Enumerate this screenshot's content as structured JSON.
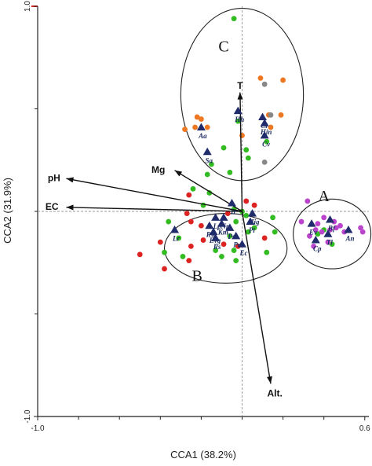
{
  "chart_data": {
    "type": "scatter",
    "title": "",
    "xlabel": "CCA1 (38.2%)",
    "ylabel": "CCA2 (31.9%)",
    "xlim": [
      -1.0,
      0.6
    ],
    "ylim": [
      -1.0,
      1.0
    ],
    "xticks": [
      {
        "value": -1.0,
        "label": "-1.0"
      },
      {
        "value": 0.6,
        "label": "0.6"
      }
    ],
    "yticks": [
      {
        "value": 1.0,
        "label": "1.0"
      },
      {
        "value": -1.0,
        "label": "-1.0"
      }
    ],
    "colors": {
      "group_a": "#bb44cc",
      "group_b_red": "#dd2222",
      "green": "#33bb22",
      "orange": "#ee7722",
      "gray": "#888888",
      "species": "#1f2b6b",
      "vector": "#111111"
    },
    "groups": [
      {
        "label": "A",
        "cx": 0.44,
        "cy": -0.11,
        "rx": 0.19,
        "ry": 0.17
      },
      {
        "label": "B",
        "cx": -0.08,
        "cy": -0.18,
        "rx": 0.3,
        "ry": 0.17
      },
      {
        "label": "C",
        "cx": 0.0,
        "cy": 0.57,
        "rx": 0.3,
        "ry": 0.42
      }
    ],
    "group_label_positions": [
      {
        "label": "A",
        "x": 0.4,
        "y": 0.05
      },
      {
        "label": "B",
        "x": -0.22,
        "y": -0.34
      },
      {
        "label": "C",
        "x": -0.09,
        "y": 0.78
      }
    ],
    "vectors": [
      {
        "label": "T",
        "x": -0.01,
        "y": 0.58,
        "label_x": -0.01,
        "label_y": 0.61
      },
      {
        "label": "Mg",
        "x": -0.33,
        "y": 0.2,
        "label_x": -0.41,
        "label_y": 0.2
      },
      {
        "label": "pH",
        "x": -0.86,
        "y": 0.16,
        "label_x": -0.92,
        "label_y": 0.16
      },
      {
        "label": "EC",
        "x": -0.86,
        "y": 0.02,
        "label_x": -0.93,
        "label_y": 0.02
      },
      {
        "label": "Alt.",
        "x": 0.14,
        "y": -0.84,
        "label_x": 0.16,
        "label_y": -0.89
      }
    ],
    "series": [
      {
        "name": "",
        "marker": "triangle",
        "color": "#1f2b6b",
        "points": [
          {
            "x": -0.02,
            "y": 0.49,
            "label": "Hh"
          },
          {
            "x": 0.1,
            "y": 0.46,
            "label": "Ci"
          },
          {
            "x": 0.11,
            "y": 0.43,
            "label": "Hin"
          },
          {
            "x": 0.11,
            "y": 0.37,
            "label": "Cv"
          },
          {
            "x": -0.2,
            "y": 0.41,
            "label": "Aa"
          },
          {
            "x": -0.17,
            "y": 0.29,
            "label": "Sa"
          },
          {
            "x": -0.05,
            "y": 0.04,
            "label": "Ir"
          },
          {
            "x": 0.05,
            "y": -0.01,
            "label": "Hig"
          },
          {
            "x": 0.04,
            "y": -0.05,
            "label": "Pi"
          },
          {
            "x": -0.09,
            "y": -0.03,
            "label": "Np"
          },
          {
            "x": -0.13,
            "y": -0.03,
            "label": "Lp"
          },
          {
            "x": -0.1,
            "y": -0.06,
            "label": "Km"
          },
          {
            "x": -0.16,
            "y": -0.07,
            "label": "Rw"
          },
          {
            "x": -0.06,
            "y": -0.08,
            "label": "Ps"
          },
          {
            "x": -0.14,
            "y": -0.1,
            "label": "Evg"
          },
          {
            "x": -0.33,
            "y": -0.09,
            "label": "Lr"
          },
          {
            "x": -0.13,
            "y": -0.13,
            "label": "Rs"
          },
          {
            "x": -0.03,
            "y": -0.12,
            "label": "Pu"
          },
          {
            "x": 0.0,
            "y": -0.16,
            "label": "Ec"
          },
          {
            "x": 0.34,
            "y": -0.06,
            "label": "Ev"
          },
          {
            "x": 0.43,
            "y": -0.04,
            "label": "Bf"
          },
          {
            "x": 0.52,
            "y": -0.09,
            "label": "An"
          },
          {
            "x": 0.42,
            "y": -0.11,
            "label": "Tl"
          },
          {
            "x": 0.36,
            "y": -0.14,
            "label": "Cp"
          }
        ]
      },
      {
        "name": "",
        "marker": "circle",
        "color": "#ee7722",
        "points": [
          {
            "x": 0.09,
            "y": 0.65
          },
          {
            "x": 0.2,
            "y": 0.64
          },
          {
            "x": 0.13,
            "y": 0.47
          },
          {
            "x": 0.19,
            "y": 0.47
          },
          {
            "x": -0.22,
            "y": 0.46
          },
          {
            "x": -0.2,
            "y": 0.45
          },
          {
            "x": -0.17,
            "y": 0.41
          },
          {
            "x": -0.23,
            "y": 0.41
          },
          {
            "x": 0.0,
            "y": 0.37
          },
          {
            "x": -0.28,
            "y": 0.4
          },
          {
            "x": 0.14,
            "y": 0.41
          }
        ]
      },
      {
        "name": "",
        "marker": "circle",
        "color": "#888888",
        "points": [
          {
            "x": 0.11,
            "y": 0.62
          },
          {
            "x": 0.14,
            "y": 0.47
          },
          {
            "x": 0.11,
            "y": 0.24
          }
        ]
      },
      {
        "name": "",
        "marker": "circle",
        "color": "#33bb22",
        "points": [
          {
            "x": -0.04,
            "y": 0.94
          },
          {
            "x": -0.02,
            "y": 0.44
          },
          {
            "x": 0.12,
            "y": 0.34
          },
          {
            "x": 0.02,
            "y": 0.3
          },
          {
            "x": -0.09,
            "y": 0.31
          },
          {
            "x": 0.03,
            "y": 0.26
          },
          {
            "x": -0.15,
            "y": 0.23
          },
          {
            "x": -0.06,
            "y": 0.19
          },
          {
            "x": -0.17,
            "y": 0.18
          },
          {
            "x": -0.16,
            "y": 0.09
          },
          {
            "x": -0.24,
            "y": 0.11
          },
          {
            "x": -0.19,
            "y": 0.03
          },
          {
            "x": -0.04,
            "y": 0.01
          },
          {
            "x": 0.0,
            "y": 0.0
          },
          {
            "x": 0.02,
            "y": -0.02
          },
          {
            "x": -0.03,
            "y": -0.05
          },
          {
            "x": 0.06,
            "y": -0.08
          },
          {
            "x": -0.06,
            "y": -0.12
          },
          {
            "x": 0.03,
            "y": -0.1
          },
          {
            "x": -0.36,
            "y": -0.05
          },
          {
            "x": -0.31,
            "y": -0.13
          },
          {
            "x": -0.38,
            "y": -0.2
          },
          {
            "x": -0.29,
            "y": -0.22
          },
          {
            "x": -0.13,
            "y": -0.19
          },
          {
            "x": 0.15,
            "y": -0.03
          },
          {
            "x": 0.16,
            "y": -0.1
          },
          {
            "x": 0.12,
            "y": -0.2
          },
          {
            "x": -0.1,
            "y": -0.22
          },
          {
            "x": -0.04,
            "y": -0.19
          },
          {
            "x": -0.03,
            "y": -0.24
          },
          {
            "x": 0.4,
            "y": -0.09
          },
          {
            "x": 0.37,
            "y": -0.11
          },
          {
            "x": 0.44,
            "y": -0.16
          }
        ]
      },
      {
        "name": "",
        "marker": "circle",
        "color": "#dd2222",
        "points": [
          {
            "x": -0.26,
            "y": 0.08
          },
          {
            "x": -0.27,
            "y": -0.01
          },
          {
            "x": -0.25,
            "y": -0.05
          },
          {
            "x": -0.2,
            "y": -0.07
          },
          {
            "x": -0.19,
            "y": -0.14
          },
          {
            "x": -0.25,
            "y": -0.17
          },
          {
            "x": -0.26,
            "y": -0.24
          },
          {
            "x": -0.4,
            "y": -0.15
          },
          {
            "x": -0.5,
            "y": -0.21
          },
          {
            "x": -0.38,
            "y": -0.28
          },
          {
            "x": -0.07,
            "y": -0.01
          },
          {
            "x": 0.06,
            "y": 0.03
          },
          {
            "x": 0.11,
            "y": -0.13
          },
          {
            "x": -0.09,
            "y": -0.16
          },
          {
            "x": -0.02,
            "y": -0.17
          },
          {
            "x": 0.02,
            "y": 0.05
          }
        ]
      },
      {
        "name": "",
        "marker": "circle",
        "color": "#bb44cc",
        "points": [
          {
            "x": 0.32,
            "y": 0.05
          },
          {
            "x": 0.59,
            "y": -0.1
          },
          {
            "x": 0.46,
            "y": -0.08
          },
          {
            "x": 0.4,
            "y": -0.03
          },
          {
            "x": 0.37,
            "y": -0.06
          },
          {
            "x": 0.45,
            "y": -0.05
          },
          {
            "x": 0.48,
            "y": -0.07
          },
          {
            "x": 0.43,
            "y": -0.09
          },
          {
            "x": 0.39,
            "y": -0.1
          },
          {
            "x": 0.33,
            "y": -0.12
          },
          {
            "x": 0.35,
            "y": -0.17
          },
          {
            "x": 0.42,
            "y": -0.15
          },
          {
            "x": 0.5,
            "y": -0.1
          },
          {
            "x": 0.36,
            "y": -0.09
          },
          {
            "x": 0.58,
            "y": -0.08
          },
          {
            "x": 0.29,
            "y": -0.05
          }
        ]
      }
    ]
  }
}
